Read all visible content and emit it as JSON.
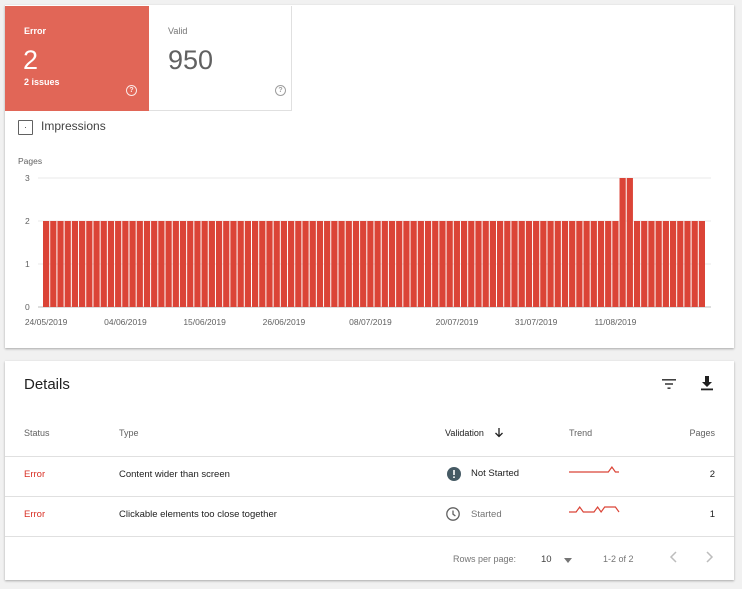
{
  "summary": {
    "error": {
      "label": "Error",
      "value": "2",
      "sub": "2 issues",
      "help": "?"
    },
    "valid": {
      "label": "Valid",
      "value": "950",
      "help": "?"
    }
  },
  "impressions": {
    "label": "Impressions",
    "checked": false
  },
  "colors": {
    "error": "#e16657",
    "bar": "#db4437",
    "error_text": "#d93025",
    "grid": "#e8e8e8"
  },
  "chart_data": {
    "type": "bar",
    "ylabel": "Pages",
    "ylim": [
      0,
      3
    ],
    "yticks": [
      "0",
      "1",
      "2",
      "3"
    ],
    "xticks": [
      "24/05/2019",
      "04/06/2019",
      "15/06/2019",
      "26/06/2019",
      "08/07/2019",
      "20/07/2019",
      "31/07/2019",
      "11/08/2019"
    ],
    "x_start": "24/05/2019",
    "x_end": "24/08/2019",
    "values": [
      2,
      2,
      2,
      2,
      2,
      2,
      2,
      2,
      2,
      2,
      2,
      2,
      2,
      2,
      2,
      2,
      2,
      2,
      2,
      2,
      2,
      2,
      2,
      2,
      2,
      2,
      2,
      2,
      2,
      2,
      2,
      2,
      2,
      2,
      2,
      2,
      2,
      2,
      2,
      2,
      2,
      2,
      2,
      2,
      2,
      2,
      2,
      2,
      2,
      2,
      2,
      2,
      2,
      2,
      2,
      2,
      2,
      2,
      2,
      2,
      2,
      2,
      2,
      2,
      2,
      2,
      2,
      2,
      2,
      2,
      2,
      2,
      2,
      2,
      2,
      2,
      2,
      2,
      2,
      2,
      3,
      3,
      2,
      2,
      2,
      2,
      2,
      2,
      2,
      2,
      2,
      2
    ]
  },
  "details": {
    "title": "Details",
    "filter_icon": "filter-icon",
    "download_icon": "download-icon",
    "columns": {
      "status": "Status",
      "type": "Type",
      "validation": "Validation",
      "trend": "Trend",
      "pages": "Pages"
    },
    "rows": [
      {
        "status": "Error",
        "type": "Content wider than screen",
        "validation": "Not Started",
        "validation_icon": "exclamation-icon",
        "pages": "2",
        "trend": [
          0,
          0,
          0,
          0,
          0,
          0,
          0,
          0,
          0,
          0,
          0,
          0,
          1,
          0,
          0
        ]
      },
      {
        "status": "Error",
        "type": "Clickable elements too close together",
        "validation": "Started",
        "validation_icon": "clock-icon",
        "pages": "1",
        "trend": [
          0,
          0,
          0,
          1,
          0,
          0,
          0,
          0,
          1,
          0,
          1,
          1,
          1,
          1,
          0
        ]
      }
    ],
    "pagination": {
      "rows_per_page_label": "Rows per page:",
      "rows_per_page": "10",
      "range": "1-2 of 2"
    }
  }
}
